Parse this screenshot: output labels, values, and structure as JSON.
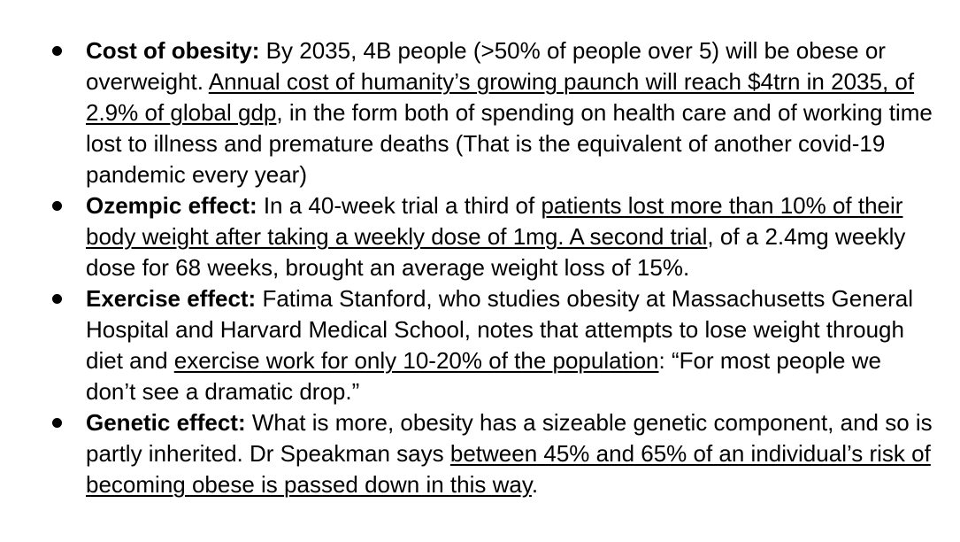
{
  "page": {
    "background_color": "#ffffff",
    "text_color": "#000000"
  },
  "bullets": [
    {
      "segments": [
        {
          "text": "Cost of obesity:",
          "bold": true,
          "underline": false
        },
        {
          "text": " By 2035, 4B people (>50% of people over 5) will be obese or overweight. ",
          "bold": false,
          "underline": false
        },
        {
          "text": "Annual cost of humanity’s growing paunch will reach $4trn in 2035, of 2.9% of global gdp",
          "bold": false,
          "underline": true
        },
        {
          "text": ", in the form both of spending on health care and of working time lost to illness and premature deaths (That is the equivalent of another covid-19 pandemic every year)",
          "bold": false,
          "underline": false
        }
      ]
    },
    {
      "segments": [
        {
          "text": "Ozempic effect:",
          "bold": true,
          "underline": false
        },
        {
          "text": " In a 40-week trial a third of ",
          "bold": false,
          "underline": false
        },
        {
          "text": "patients lost more than 10% of their body weight after taking a weekly dose of 1mg. A second trial",
          "bold": false,
          "underline": true
        },
        {
          "text": ", of a 2.4mg weekly dose for 68 weeks, brought an average weight loss of 15%.",
          "bold": false,
          "underline": false
        }
      ]
    },
    {
      "segments": [
        {
          "text": "Exercise effect:",
          "bold": true,
          "underline": false
        },
        {
          "text": " Fatima Stanford, who studies obesity at Massachusetts General Hospital and Harvard Medical School, notes that attempts to lose weight through diet and ",
          "bold": false,
          "underline": false
        },
        {
          "text": "exercise work for only 10-20% of the population",
          "bold": false,
          "underline": true
        },
        {
          "text": ": “For most people we don’t see a dramatic drop.”",
          "bold": false,
          "underline": false
        }
      ]
    },
    {
      "segments": [
        {
          "text": "Genetic effect:",
          "bold": true,
          "underline": false
        },
        {
          "text": " What is more, obesity has a sizeable genetic component, and so is partly inherited. Dr Speakman says ",
          "bold": false,
          "underline": false
        },
        {
          "text": "between 45% and 65% of an individual’s risk of becoming obese is passed down in this way",
          "bold": false,
          "underline": true
        },
        {
          "text": ".",
          "bold": false,
          "underline": false
        }
      ]
    }
  ]
}
